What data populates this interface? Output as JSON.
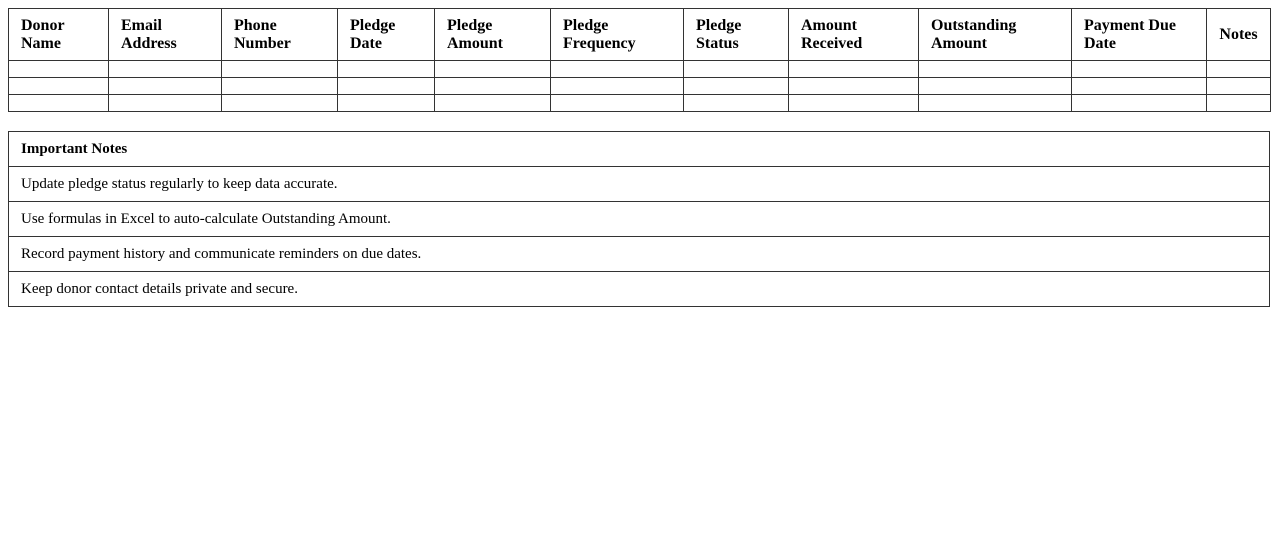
{
  "pledge_table": {
    "headers": [
      "Donor Name",
      "Email Address",
      "Phone Number",
      "Pledge Date",
      "Pledge Amount",
      "Pledge Frequency",
      "Pledge Status",
      "Amount Received",
      "Outstanding Amount",
      "Payment Due Date",
      "Notes"
    ],
    "rows": [
      [
        "",
        "",
        "",
        "",
        "",
        "",
        "",
        "",
        "",
        "",
        ""
      ],
      [
        "",
        "",
        "",
        "",
        "",
        "",
        "",
        "",
        "",
        "",
        ""
      ],
      [
        "",
        "",
        "",
        "",
        "",
        "",
        "",
        "",
        "",
        "",
        ""
      ]
    ]
  },
  "notes_table": {
    "title": "Important Notes",
    "items": [
      "Update pledge status regularly to keep data accurate.",
      "Use formulas in Excel to auto-calculate Outstanding Amount.",
      "Record payment history and communicate reminders on due dates.",
      "Keep donor contact details private and secure."
    ]
  }
}
